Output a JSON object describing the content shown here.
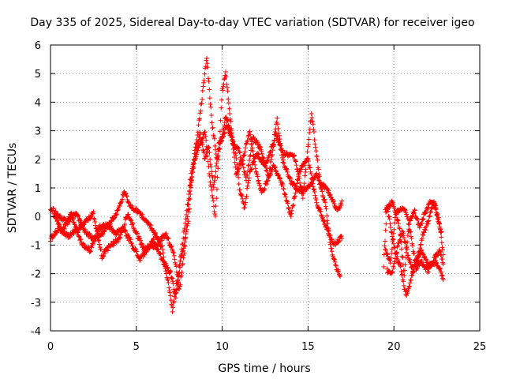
{
  "chart_data": {
    "type": "scatter",
    "title": "Day 335 of 2025, Sidereal Day-to-day VTEC variation (SDTVAR) for receiver igeo",
    "xlabel": "GPS time / hours",
    "ylabel": "SDTVAR / TECUs",
    "xlim": [
      0,
      25
    ],
    "ylim": [
      -4,
      6
    ],
    "x_ticks": [
      "0",
      "5",
      "10",
      "15",
      "20",
      "25"
    ],
    "y_ticks": [
      "-4",
      "-3",
      "-2",
      "-1",
      "0",
      "1",
      "2",
      "3",
      "4",
      "5",
      "6"
    ],
    "grid": true,
    "marker": "+",
    "color": "#ff0000",
    "series": [
      {
        "name": "SDTVAR",
        "traces": [
          [
            [
              0.0,
              0.3
            ],
            [
              0.5,
              0.0
            ],
            [
              1.0,
              -0.2
            ],
            [
              1.5,
              0.1
            ],
            [
              2.0,
              -0.5
            ],
            [
              2.5,
              -0.8
            ],
            [
              3.0,
              -0.6
            ],
            [
              3.5,
              -0.2
            ],
            [
              4.0,
              0.3
            ],
            [
              4.3,
              0.9
            ],
            [
              4.6,
              0.4
            ],
            [
              5.0,
              0.2
            ],
            [
              5.5,
              -0.1
            ],
            [
              6.0,
              -0.5
            ],
            [
              6.5,
              -1.1
            ],
            [
              6.9,
              -2.5
            ],
            [
              7.1,
              -3.3
            ],
            [
              7.4,
              -2.2
            ],
            [
              7.7,
              -0.9
            ],
            [
              8.0,
              0.5
            ],
            [
              8.2,
              1.5
            ],
            [
              8.5,
              2.6
            ],
            [
              8.8,
              4.0
            ],
            [
              9.1,
              5.6
            ],
            [
              9.4,
              3.3
            ],
            [
              9.7,
              2.0
            ],
            [
              10.0,
              2.8
            ],
            [
              10.2,
              3.5
            ],
            [
              10.5,
              3.0
            ],
            [
              10.8,
              2.2
            ],
            [
              11.0,
              1.0
            ],
            [
              11.3,
              0.3
            ],
            [
              11.6,
              1.5
            ],
            [
              12.0,
              2.2
            ],
            [
              12.5,
              1.8
            ],
            [
              13.0,
              2.6
            ],
            [
              13.2,
              3.4
            ],
            [
              13.5,
              2.0
            ],
            [
              14.0,
              1.2
            ],
            [
              14.5,
              0.9
            ],
            [
              15.0,
              1.0
            ],
            [
              15.5,
              1.5
            ],
            [
              16.0,
              0.5
            ],
            [
              16.3,
              -1.0
            ],
            [
              16.6,
              -1.7
            ],
            [
              16.9,
              -2.1
            ]
          ],
          [
            [
              0.0,
              -0.8
            ],
            [
              0.5,
              -0.4
            ],
            [
              1.0,
              -0.7
            ],
            [
              1.5,
              -0.5
            ],
            [
              2.0,
              -0.2
            ],
            [
              2.5,
              0.1
            ],
            [
              3.0,
              -1.4
            ],
            [
              3.5,
              -1.0
            ],
            [
              4.0,
              -0.8
            ],
            [
              4.5,
              0.1
            ],
            [
              5.0,
              -0.6
            ],
            [
              5.5,
              -1.2
            ],
            [
              6.0,
              -0.8
            ],
            [
              6.5,
              -1.5
            ],
            [
              7.0,
              -2.0
            ],
            [
              7.3,
              -2.8
            ],
            [
              7.6,
              -1.5
            ],
            [
              8.0,
              -0.3
            ],
            [
              8.3,
              1.8
            ],
            [
              8.6,
              2.4
            ],
            [
              9.0,
              3.0
            ],
            [
              9.3,
              1.2
            ],
            [
              9.6,
              0.0
            ],
            [
              10.0,
              4.4
            ],
            [
              10.2,
              5.0
            ],
            [
              10.5,
              3.3
            ],
            [
              10.8,
              1.5
            ],
            [
              11.2,
              2.0
            ],
            [
              11.6,
              3.0
            ],
            [
              12.0,
              1.5
            ],
            [
              12.3,
              0.8
            ],
            [
              12.6,
              1.2
            ],
            [
              13.0,
              1.8
            ],
            [
              13.5,
              1.1
            ],
            [
              14.0,
              0.0
            ],
            [
              14.5,
              1.6
            ],
            [
              15.0,
              2.0
            ],
            [
              15.5,
              0.5
            ],
            [
              16.0,
              -0.3
            ],
            [
              16.5,
              -1.0
            ],
            [
              17.0,
              -0.7
            ]
          ],
          [
            [
              0.2,
              0.0
            ],
            [
              0.7,
              -0.5
            ],
            [
              1.2,
              0.1
            ],
            [
              1.8,
              -0.9
            ],
            [
              2.3,
              -1.2
            ],
            [
              2.8,
              -0.4
            ],
            [
              3.3,
              -0.3
            ],
            [
              3.8,
              -0.6
            ],
            [
              4.2,
              -0.4
            ],
            [
              4.7,
              -0.9
            ],
            [
              5.2,
              -1.5
            ],
            [
              5.7,
              -1.1
            ],
            [
              6.2,
              -1.0
            ],
            [
              6.7,
              -0.6
            ],
            [
              7.2,
              -1.3
            ],
            [
              7.5,
              -2.6
            ],
            [
              7.8,
              -1.2
            ],
            [
              8.1,
              0.9
            ],
            [
              8.4,
              2.0
            ],
            [
              8.7,
              2.9
            ],
            [
              9.0,
              2.0
            ],
            [
              9.2,
              2.5
            ],
            [
              9.5,
              1.0
            ],
            [
              9.8,
              2.5
            ],
            [
              10.3,
              3.2
            ],
            [
              10.6,
              2.6
            ],
            [
              11.0,
              2.3
            ],
            [
              11.4,
              1.3
            ],
            [
              11.8,
              2.8
            ],
            [
              12.2,
              2.4
            ],
            [
              12.7,
              1.4
            ],
            [
              13.1,
              2.9
            ],
            [
              13.6,
              2.2
            ],
            [
              14.2,
              2.1
            ],
            [
              14.7,
              0.7
            ],
            [
              15.2,
              3.6
            ],
            [
              15.7,
              1.2
            ],
            [
              16.2,
              0.9
            ],
            [
              16.7,
              0.2
            ],
            [
              17.0,
              0.5
            ]
          ],
          [
            [
              19.4,
              -1.7
            ],
            [
              19.6,
              0.4
            ],
            [
              19.9,
              -0.7
            ],
            [
              20.1,
              -1.3
            ],
            [
              20.4,
              -1.8
            ],
            [
              20.7,
              -2.8
            ],
            [
              21.0,
              -2.2
            ],
            [
              21.3,
              -1.6
            ],
            [
              21.6,
              -1.2
            ],
            [
              22.0,
              -1.7
            ],
            [
              22.4,
              -1.6
            ],
            [
              22.7,
              -1.9
            ],
            [
              22.9,
              -2.2
            ]
          ],
          [
            [
              19.5,
              -1.2
            ],
            [
              19.8,
              -1.6
            ],
            [
              20.1,
              0.1
            ],
            [
              20.4,
              0.3
            ],
            [
              20.7,
              0.2
            ],
            [
              21.0,
              -0.7
            ],
            [
              21.3,
              -1.8
            ],
            [
              21.6,
              -1.6
            ],
            [
              22.0,
              -1.9
            ],
            [
              22.4,
              -1.4
            ],
            [
              22.7,
              -1.2
            ],
            [
              22.9,
              -1.8
            ]
          ],
          [
            [
              19.6,
              -1.9
            ],
            [
              19.9,
              -2.0
            ],
            [
              20.2,
              -1.1
            ],
            [
              20.5,
              -0.5
            ],
            [
              20.8,
              -1.3
            ],
            [
              21.1,
              -1.9
            ],
            [
              21.4,
              -1.4
            ],
            [
              21.7,
              -0.6
            ],
            [
              22.0,
              -0.2
            ],
            [
              22.3,
              0.5
            ],
            [
              22.6,
              -0.1
            ],
            [
              22.8,
              -0.7
            ]
          ],
          [
            [
              19.5,
              0.2
            ],
            [
              19.9,
              0.5
            ],
            [
              20.3,
              -0.3
            ],
            [
              20.6,
              -2.0
            ],
            [
              20.9,
              -0.2
            ],
            [
              21.2,
              0.2
            ],
            [
              21.5,
              -0.4
            ],
            [
              21.8,
              0.1
            ],
            [
              22.1,
              0.5
            ],
            [
              22.4,
              0.4
            ],
            [
              22.7,
              -0.5
            ],
            [
              22.9,
              -1.4
            ]
          ]
        ]
      }
    ]
  }
}
